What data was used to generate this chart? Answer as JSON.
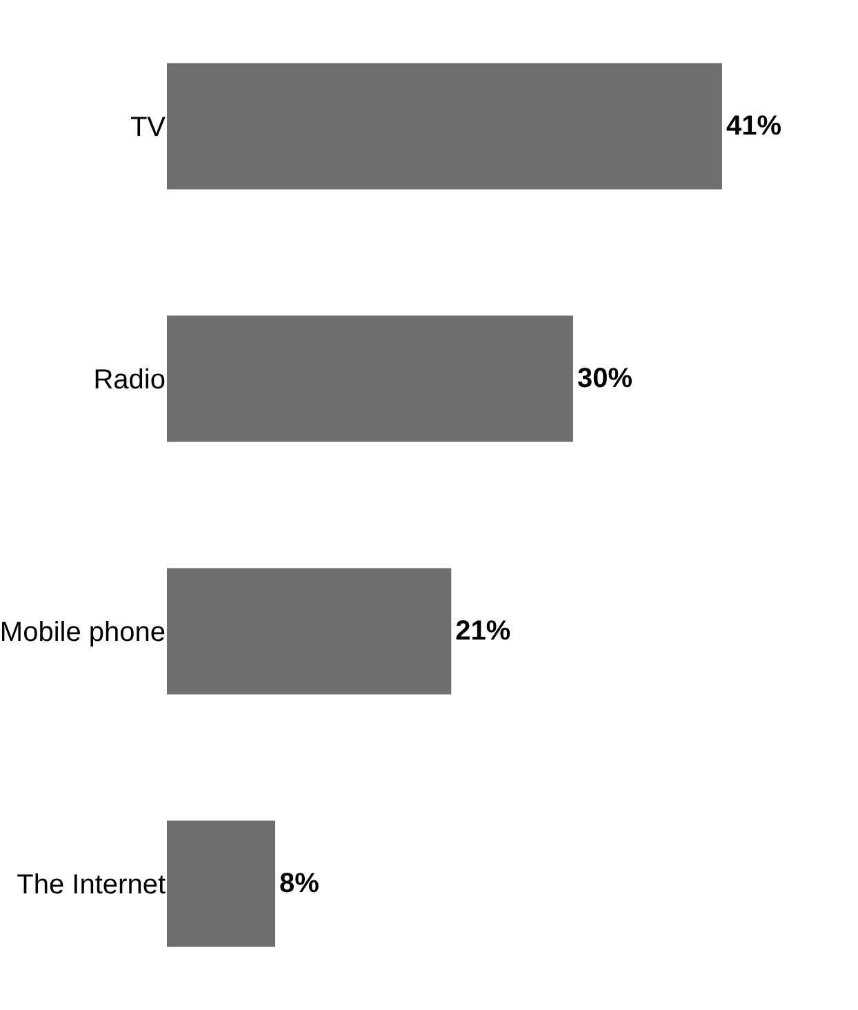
{
  "chart_data": {
    "type": "bar",
    "orientation": "horizontal",
    "categories": [
      "TV",
      "Radio",
      "Mobile phone",
      "The Internet"
    ],
    "values": [
      41,
      30,
      21,
      8
    ],
    "value_labels": [
      "41%",
      "30%",
      "21%",
      "8%"
    ],
    "color": "#6f6f6f"
  }
}
